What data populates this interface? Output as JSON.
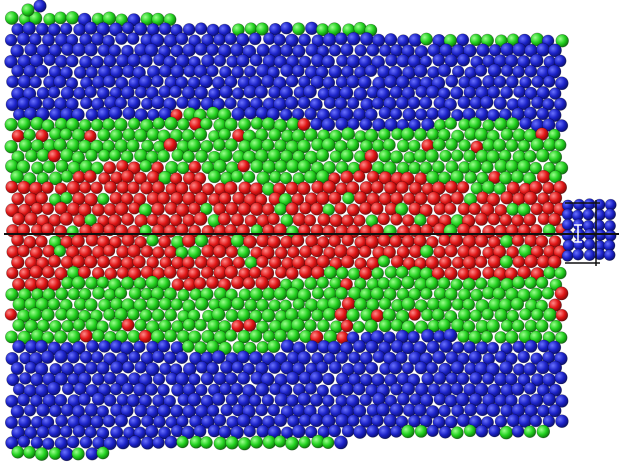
{
  "figure": {
    "description_layers": [
      "blue",
      "green",
      "red",
      "green",
      "blue"
    ],
    "colors": {
      "blue": "#1b22c8",
      "green": "#22d11f",
      "red": "#e01616",
      "axis": "#111111",
      "background": "#ffffff"
    }
  }
}
